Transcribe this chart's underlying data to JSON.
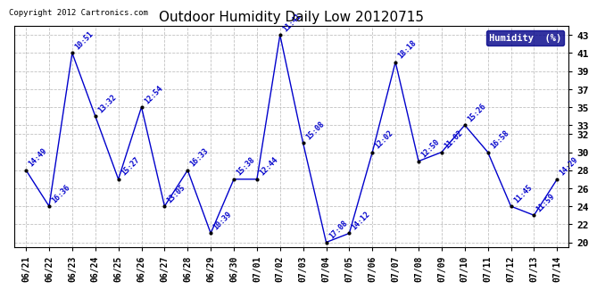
{
  "title": "Outdoor Humidity Daily Low 20120715",
  "copyright": "Copyright 2012 Cartronics.com",
  "legend_label": "Humidity  (%)",
  "line_color": "#0000CC",
  "background_color": "#ffffff",
  "grid_color": "#bbbbbb",
  "x_labels": [
    "06/21",
    "06/22",
    "06/23",
    "06/24",
    "06/25",
    "06/26",
    "06/27",
    "06/28",
    "06/29",
    "06/30",
    "07/01",
    "07/02",
    "07/03",
    "07/04",
    "07/05",
    "07/06",
    "07/07",
    "07/08",
    "07/09",
    "07/10",
    "07/11",
    "07/12",
    "07/13",
    "07/14"
  ],
  "y_values": [
    28,
    24,
    41,
    34,
    27,
    35,
    24,
    28,
    21,
    27,
    27,
    43,
    31,
    20,
    21,
    30,
    40,
    29,
    30,
    33,
    30,
    24,
    23,
    27
  ],
  "point_labels": [
    "14:49",
    "16:36",
    "10:51",
    "13:32",
    "15:27",
    "12:54",
    "13:05",
    "16:33",
    "10:39",
    "15:38",
    "12:44",
    "11:41",
    "15:08",
    "17:08",
    "14:12",
    "12:02",
    "18:18",
    "12:50",
    "11:02",
    "15:26",
    "16:58",
    "11:45",
    "11:59",
    "14:29"
  ],
  "ylim": [
    19.5,
    44
  ],
  "yticks": [
    20,
    22,
    24,
    26,
    28,
    30,
    32,
    33,
    35,
    37,
    39,
    41,
    43
  ]
}
